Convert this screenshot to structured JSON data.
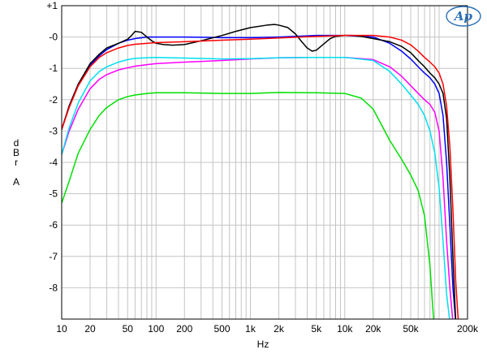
{
  "chart_data": {
    "type": "line",
    "title": "",
    "xlabel": "Hz",
    "ylabel_lines": [
      "d",
      "B",
      "r",
      "",
      "A"
    ],
    "x_scale": "log",
    "xlim": [
      10,
      200000
    ],
    "ylim": [
      -9,
      1
    ],
    "grid": true,
    "x_ticks": [
      {
        "value": 10,
        "label": "10"
      },
      {
        "value": 20,
        "label": "20"
      },
      {
        "value": 50,
        "label": "50"
      },
      {
        "value": 100,
        "label": "100"
      },
      {
        "value": 200,
        "label": "200"
      },
      {
        "value": 500,
        "label": "500"
      },
      {
        "value": 1000,
        "label": "1k"
      },
      {
        "value": 2000,
        "label": "2k"
      },
      {
        "value": 5000,
        "label": "5k"
      },
      {
        "value": 10000,
        "label": "10k"
      },
      {
        "value": 20000,
        "label": "20k"
      },
      {
        "value": 50000,
        "label": "50k"
      },
      {
        "value": 200000,
        "label": "200k"
      }
    ],
    "y_ticks": [
      {
        "value": 1,
        "label": "+1"
      },
      {
        "value": 0,
        "label": "-0"
      },
      {
        "value": -1,
        "label": "-1"
      },
      {
        "value": -2,
        "label": "-2"
      },
      {
        "value": -3,
        "label": "-3"
      },
      {
        "value": -4,
        "label": "-4"
      },
      {
        "value": -5,
        "label": "-5"
      },
      {
        "value": -6,
        "label": "-6"
      },
      {
        "value": -7,
        "label": "-7"
      },
      {
        "value": -8,
        "label": "-8"
      }
    ],
    "series": [
      {
        "color": "#00e000",
        "x": [
          10,
          12,
          15,
          20,
          25,
          30,
          40,
          50,
          60,
          80,
          100,
          200,
          500,
          1000,
          2000,
          5000,
          10000,
          15000,
          20000,
          30000,
          40000,
          50000,
          60000,
          70000,
          80000,
          85000,
          88000
        ],
        "y": [
          -5.3,
          -4.6,
          -3.7,
          -2.95,
          -2.5,
          -2.25,
          -2.0,
          -1.9,
          -1.85,
          -1.8,
          -1.78,
          -1.78,
          -1.8,
          -1.8,
          -1.77,
          -1.78,
          -1.8,
          -1.95,
          -2.3,
          -3.3,
          -3.9,
          -4.4,
          -4.9,
          -5.7,
          -7.3,
          -8.5,
          -9.1
        ]
      },
      {
        "color": "#ff00ff",
        "x": [
          10,
          12,
          15,
          20,
          25,
          30,
          40,
          50,
          60,
          80,
          100,
          200,
          500,
          1000,
          2000,
          5000,
          10000,
          20000,
          30000,
          40000,
          50000,
          60000,
          70000,
          80000,
          90000,
          100000,
          110000,
          120000,
          130000,
          140000
        ],
        "y": [
          -3.75,
          -3.0,
          -2.3,
          -1.65,
          -1.35,
          -1.2,
          -1.05,
          -0.98,
          -0.93,
          -0.88,
          -0.85,
          -0.8,
          -0.75,
          -0.7,
          -0.66,
          -0.65,
          -0.65,
          -0.72,
          -0.95,
          -1.25,
          -1.55,
          -1.8,
          -2.0,
          -2.15,
          -2.4,
          -3.0,
          -4.5,
          -6.5,
          -8.0,
          -9.1
        ]
      },
      {
        "color": "#00e0f0",
        "x": [
          10,
          12,
          15,
          20,
          25,
          30,
          40,
          50,
          60,
          80,
          100,
          200,
          500,
          1000,
          2000,
          5000,
          10000,
          20000,
          30000,
          40000,
          50000,
          60000,
          70000,
          80000,
          90000,
          100000,
          110000,
          120000,
          130000
        ],
        "y": [
          -3.75,
          -2.9,
          -2.1,
          -1.4,
          -1.1,
          -0.95,
          -0.8,
          -0.72,
          -0.68,
          -0.66,
          -0.65,
          -0.67,
          -0.7,
          -0.69,
          -0.66,
          -0.65,
          -0.65,
          -0.75,
          -1.1,
          -1.5,
          -1.85,
          -2.15,
          -2.5,
          -3.0,
          -3.7,
          -4.8,
          -6.5,
          -8.2,
          -9.1
        ]
      },
      {
        "color": "#0000ff",
        "x": [
          10,
          12,
          15,
          20,
          25,
          30,
          40,
          50,
          60,
          80,
          100,
          200,
          500,
          1000,
          2000,
          5000,
          10000,
          20000,
          30000,
          40000,
          50000,
          60000,
          70000,
          80000,
          90000,
          100000,
          110000,
          120000,
          130000,
          140000,
          150000
        ],
        "y": [
          -2.95,
          -2.2,
          -1.5,
          -0.9,
          -0.6,
          -0.4,
          -0.2,
          -0.1,
          -0.05,
          0.0,
          0.0,
          0.0,
          -0.02,
          -0.02,
          0.0,
          0.05,
          0.05,
          0.0,
          -0.2,
          -0.45,
          -0.7,
          -0.95,
          -1.15,
          -1.3,
          -1.5,
          -1.8,
          -2.5,
          -4.0,
          -6.0,
          -8.0,
          -9.1
        ]
      },
      {
        "color": "#000000",
        "x": [
          10,
          12,
          15,
          20,
          25,
          30,
          40,
          50,
          55,
          60,
          70,
          80,
          90,
          100,
          120,
          150,
          200,
          300,
          500,
          700,
          1000,
          1500,
          1800,
          2000,
          2500,
          3000,
          3500,
          4000,
          4500,
          5000,
          6000,
          7000,
          8000,
          10000,
          12000,
          15000,
          20000,
          30000,
          40000,
          50000,
          60000,
          70000,
          80000,
          90000,
          100000,
          110000,
          120000,
          130000,
          140000,
          150000
        ],
        "y": [
          -2.95,
          -2.2,
          -1.5,
          -0.85,
          -0.55,
          -0.35,
          -0.2,
          -0.07,
          0.05,
          0.18,
          0.15,
          0.0,
          -0.12,
          -0.2,
          -0.24,
          -0.26,
          -0.24,
          -0.12,
          0.05,
          0.18,
          0.3,
          0.38,
          0.4,
          0.38,
          0.3,
          0.1,
          -0.15,
          -0.35,
          -0.45,
          -0.42,
          -0.22,
          -0.05,
          0.02,
          0.05,
          0.05,
          0.02,
          -0.05,
          -0.15,
          -0.3,
          -0.5,
          -0.75,
          -0.95,
          -1.15,
          -1.3,
          -1.5,
          -1.8,
          -2.6,
          -4.5,
          -7.0,
          -9.1
        ]
      },
      {
        "color": "#ff0000",
        "x": [
          10,
          12,
          15,
          20,
          25,
          30,
          40,
          50,
          60,
          80,
          100,
          200,
          500,
          1000,
          2000,
          5000,
          10000,
          20000,
          30000,
          40000,
          50000,
          60000,
          70000,
          80000,
          90000,
          100000,
          110000,
          120000,
          130000,
          140000,
          150000,
          160000
        ],
        "y": [
          -2.95,
          -2.25,
          -1.55,
          -0.95,
          -0.65,
          -0.5,
          -0.35,
          -0.27,
          -0.23,
          -0.2,
          -0.18,
          -0.15,
          -0.1,
          -0.07,
          -0.03,
          0.02,
          0.05,
          0.05,
          0.0,
          -0.1,
          -0.25,
          -0.45,
          -0.65,
          -0.8,
          -0.95,
          -1.15,
          -1.5,
          -2.2,
          -3.5,
          -5.5,
          -7.8,
          -9.1
        ]
      }
    ]
  },
  "logo": {
    "text": "Ap",
    "color": "#2a6fb5"
  }
}
